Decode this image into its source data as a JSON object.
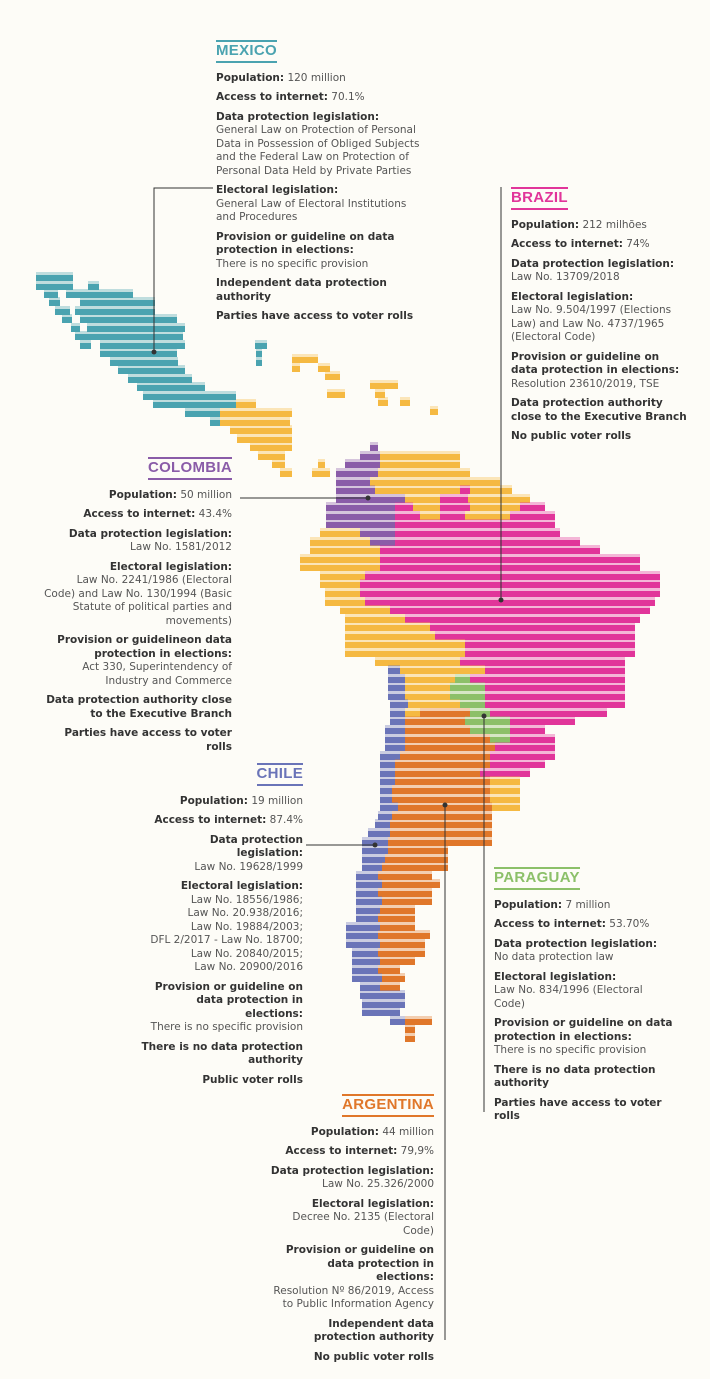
{
  "countries": [
    {
      "name": "MEXICO",
      "color": "#4aa3b0",
      "items": [
        {
          "label": "Population:",
          "value": "120 million"
        },
        {
          "label": "Access to internet:",
          "value": "70.1%"
        },
        {
          "label": "Data protection legislation:",
          "value": "General Law on Protection of Personal Data in Possession of Obliged Subjects and the Federal Law on Protection of Personal Data Held by Private Parties"
        },
        {
          "label": "Electoral legislation:",
          "value": "General Law of Electoral Institutions and Procedures"
        },
        {
          "label": "Provision or guideline on data protection in elections:",
          "value": "There is no specific provision"
        },
        {
          "label": "Independent data protection authority"
        },
        {
          "label": "Parties have access to voter rolls"
        }
      ]
    },
    {
      "name": "BRAZIL",
      "color": "#e1359a",
      "items": [
        {
          "label": "Population:",
          "value": "212 milhões"
        },
        {
          "label": "Access to internet:",
          "value": "74%"
        },
        {
          "label": "Data protection legislation:",
          "value": "Law No. 13709/2018"
        },
        {
          "label": "Electoral legislation:",
          "value": "Law No. 9.504/1997 (Elections Law) and Law No. 4737/1965 (Electoral Code)"
        },
        {
          "label": "Provision or guideline on data protection in elections:",
          "value": "Resolution 23610/2019, TSE"
        },
        {
          "label": "Data protection authority close to the Executive Branch"
        },
        {
          "label": "No public voter rolls"
        }
      ]
    },
    {
      "name": "COLOMBIA",
      "color": "#8a5ca8",
      "items": [
        {
          "label": "Population:",
          "value": "50 million"
        },
        {
          "label": "Access to internet:",
          "value": "43.4%"
        },
        {
          "label": "Data protection legislation:",
          "value": "Law No. 1581/2012"
        },
        {
          "label": "Electoral legislation:",
          "value": "Law No. 2241/1986 (Electoral Code) and Law No. 130/1994 (Basic Statute of political parties and movements)"
        },
        {
          "label": "Provision or guidelineon data protection in elections:",
          "value": "Act 330, Superintendency of Industry and Commerce"
        },
        {
          "label": "Data protection authority close to the Executive Branch"
        },
        {
          "label": "Parties have access to voter rolls"
        }
      ]
    },
    {
      "name": "CHILE",
      "color": "#6a74b8",
      "items": [
        {
          "label": "Population:",
          "value": "19 million"
        },
        {
          "label": "Access to internet:",
          "value": "87.4%"
        },
        {
          "label": "Data protection legislation:",
          "value": "Law No. 19628/1999"
        },
        {
          "label": "Electoral legislation:",
          "value": [
            "Law No. 18556/1986;",
            "Law No. 20.938/2016;",
            "Law No. 19884/2003;",
            "DFL 2/2017 - Law No. 18700;",
            "Law No. 20840/2015;",
            "Law No. 20900/2016"
          ]
        },
        {
          "label": "Provision or guideline on data protection in elections:",
          "value": "There is no specific provision"
        },
        {
          "label": "There is no data protection authority"
        },
        {
          "label": "Public voter rolls"
        }
      ]
    },
    {
      "name": "PARAGUAY",
      "color": "#8cc069",
      "items": [
        {
          "label": "Population:",
          "value": "7 million"
        },
        {
          "label": "Access to internet:",
          "value": "53.70%"
        },
        {
          "label": "Data protection legislation:",
          "value": "No data protection law"
        },
        {
          "label": "Electoral legislation:",
          "value": "Law No. 834/1996 (Electoral Code)"
        },
        {
          "label": "Provision or guideline on data protection in elections:",
          "value": "There is no specific provision"
        },
        {
          "label": "There is no data protection authority"
        },
        {
          "label": "Parties have access to voter rolls"
        }
      ]
    },
    {
      "name": "ARGENTINA",
      "color": "#e0772a",
      "items": [
        {
          "label": "Population:",
          "value": "44 million"
        },
        {
          "label": "Access to internet:",
          "value": "79,9%"
        },
        {
          "label": "Data protection legislation:",
          "value": "Law No. 25.326/2000"
        },
        {
          "label": "Electoral legislation:",
          "value": "Decree No. 2135 (Electoral Code)"
        },
        {
          "label": "Provision or guideline on data protection in elections:",
          "value": "Resolution Nº 86/2019, Access to Public Information Agency"
        },
        {
          "label": "Independent data protection authority"
        },
        {
          "label": "No public voter rolls"
        }
      ]
    }
  ]
}
